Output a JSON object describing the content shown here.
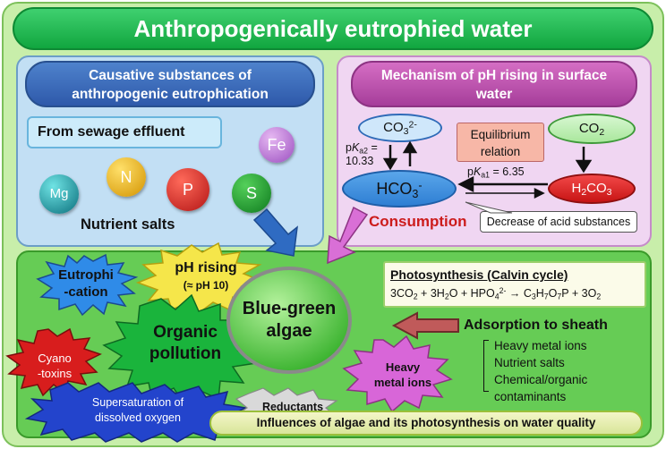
{
  "title": "Anthropogenically eutrophied water",
  "left_panel": {
    "heading_line1": "Causative substances of",
    "heading_line2": "anthropogenic eutrophication",
    "sewage": "From sewage effluent",
    "nutrients": [
      "Mg",
      "N",
      "P",
      "S"
    ],
    "fe": "Fe",
    "nutrient_salts": "Nutrient salts"
  },
  "right_panel": {
    "heading_line1": "Mechanism of pH rising in surface",
    "heading_line2": "water",
    "co3": "CO",
    "co3_sub": "3",
    "co3_sup": "2-",
    "co2": "CO",
    "co2_sub": "2",
    "hco3": "HCO",
    "hco3_sub": "3",
    "hco3_sup": "-",
    "h2co3_a": "H",
    "h2co3_sub1": "2",
    "h2co3_b": "CO",
    "h2co3_sub2": "3",
    "equilibrium_line1": "Equilibrium",
    "equilibrium_line2": "relation",
    "pka2_p": "p",
    "pka2_k": "K",
    "pka2_sub": "a2",
    "pka2_eq": " =",
    "pka2_value": "10.33",
    "pka1_p": "p",
    "pka1_k": "K",
    "pka1_sub": "a1",
    "pka1_value": " = 6.35",
    "consumption": "Consumption",
    "decrease": "Decrease of acid substances"
  },
  "lower": {
    "blue_green_line1": "Blue-green",
    "blue_green_line2": "algae",
    "eutrophi_line1": "Eutrophi",
    "eutrophi_line2": "-cation",
    "ph_rising": "pH rising",
    "ph_value": "(≈ pH 10)",
    "organic_line1": "Organic",
    "organic_line2": "pollution",
    "cyano_line1": "Cyano",
    "cyano_line2": "-toxins",
    "super_line1": "Supersaturation of",
    "super_line2": "dissolved oxygen",
    "reductants": "Reductants",
    "heavy_line1": "Heavy",
    "heavy_line2": "metal ions",
    "photosynthesis_title": "Photosynthesis (Calvin cycle)",
    "eq": {
      "a": "3CO",
      "a_sub": "2",
      "b": " + 3H",
      "b_sub": "2",
      "c": "O + HPO",
      "c_sub": "4",
      "c_sup": "2-",
      "arrow": " → C",
      "d_sub": "3",
      "e": "H",
      "e_sub": "7",
      "f": "O",
      "f_sub": "7",
      "g": "P + 3O",
      "g_sub": "2"
    },
    "adsorption": "Adsorption to sheath",
    "adsorption_items": [
      "Heavy metal ions",
      "Nutrient salts",
      "Chemical/organic",
      "contaminants"
    ],
    "influences": "Influences of algae and its photosynthesis on water quality"
  },
  "colors": {
    "title_green": "#11a63f",
    "left_panel_blue": "#c2dff4",
    "right_panel_pink": "#f0d6f2",
    "lower_green": "#66cc55",
    "consumption_red": "#cc1c1c"
  }
}
